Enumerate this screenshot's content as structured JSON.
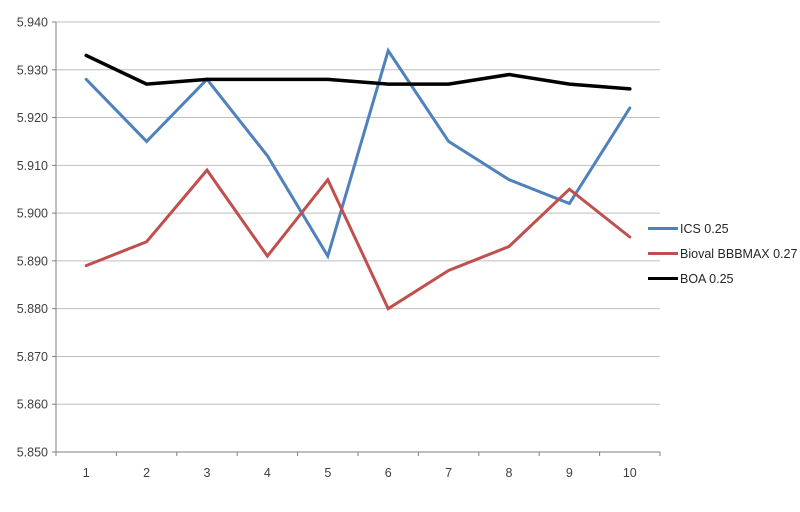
{
  "chart_data": {
    "type": "line",
    "categories": [
      "1",
      "2",
      "3",
      "4",
      "5",
      "6",
      "7",
      "8",
      "9",
      "10"
    ],
    "series": [
      {
        "name": "ICS 0.25",
        "color": "#4F81BD",
        "values": [
          5.928,
          5.915,
          5.928,
          5.912,
          5.891,
          5.934,
          5.915,
          5.907,
          5.902,
          5.922
        ]
      },
      {
        "name": "Bioval BBBMAX 0.27",
        "color": "#C0504D",
        "values": [
          5.889,
          5.894,
          5.909,
          5.891,
          5.907,
          5.88,
          5.888,
          5.893,
          5.905,
          5.895
        ]
      },
      {
        "name": "BOA 0.25",
        "color": "#000000",
        "values": [
          5.933,
          5.927,
          5.928,
          5.928,
          5.928,
          5.927,
          5.927,
          5.929,
          5.927,
          5.926
        ]
      }
    ],
    "ylim": [
      5.85,
      5.94
    ],
    "y_tick_step": 0.01,
    "y_tick_labels": [
      "5.850",
      "5.860",
      "5.870",
      "5.880",
      "5.890",
      "5.900",
      "5.910",
      "5.920",
      "5.930",
      "5.940"
    ],
    "grid": true,
    "legend_position": "right"
  },
  "style_colors": {
    "gridline": "#BFBFBF",
    "axis": "#7F7F7F",
    "axis_text": "#3F3F3F",
    "background": "#FFFFFF"
  }
}
